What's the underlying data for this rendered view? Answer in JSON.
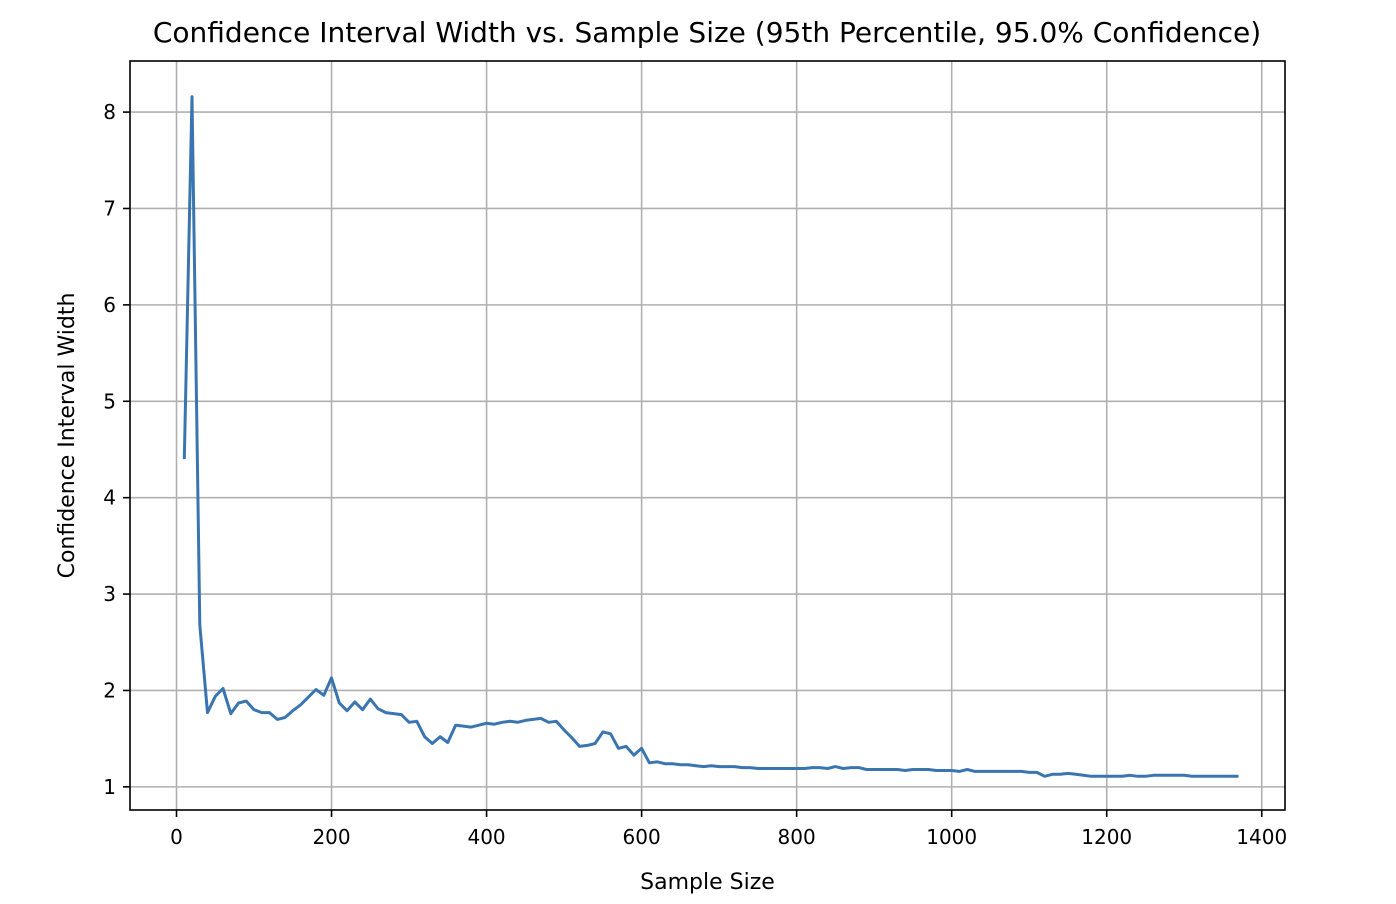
{
  "chart_data": {
    "type": "line",
    "title": "Confidence Interval Width vs. Sample Size (95th Percentile, 95.0% Confidence)",
    "xlabel": "Sample Size",
    "ylabel": "Confidence Interval Width",
    "xlim": [
      -60,
      1430
    ],
    "ylim": [
      0.76,
      8.53
    ],
    "x_ticks": [
      0,
      200,
      400,
      600,
      800,
      1000,
      1200,
      1400
    ],
    "x_tick_labels": [
      "0",
      "200",
      "400",
      "600",
      "800",
      "1000",
      "1200",
      "1400"
    ],
    "y_ticks": [
      1,
      2,
      3,
      4,
      5,
      6,
      7,
      8
    ],
    "y_tick_labels": [
      "1",
      "2",
      "3",
      "4",
      "5",
      "6",
      "7",
      "8"
    ],
    "grid": true,
    "series": [
      {
        "color": "#3a75af",
        "x": [
          10,
          20,
          30,
          40,
          50,
          60,
          70,
          80,
          90,
          100,
          110,
          120,
          130,
          140,
          150,
          160,
          170,
          180,
          190,
          200,
          210,
          220,
          230,
          240,
          250,
          260,
          270,
          280,
          290,
          300,
          310,
          320,
          330,
          340,
          350,
          360,
          370,
          380,
          390,
          400,
          410,
          420,
          430,
          440,
          450,
          460,
          470,
          480,
          490,
          500,
          510,
          520,
          530,
          540,
          550,
          560,
          570,
          580,
          590,
          600,
          610,
          620,
          630,
          640,
          650,
          660,
          670,
          680,
          690,
          700,
          710,
          720,
          730,
          740,
          750,
          760,
          770,
          780,
          790,
          800,
          810,
          820,
          830,
          840,
          850,
          860,
          870,
          880,
          890,
          900,
          910,
          920,
          930,
          940,
          950,
          960,
          970,
          980,
          990,
          1000,
          1010,
          1020,
          1030,
          1040,
          1050,
          1060,
          1070,
          1080,
          1090,
          1100,
          1110,
          1120,
          1130,
          1140,
          1150,
          1160,
          1170,
          1180,
          1190,
          1200,
          1210,
          1220,
          1230,
          1240,
          1250,
          1260,
          1270,
          1280,
          1290,
          1300,
          1310,
          1320,
          1330,
          1340,
          1350,
          1360,
          1370
        ],
        "y": [
          4.4,
          8.16,
          2.68,
          1.77,
          1.94,
          2.02,
          1.76,
          1.87,
          1.89,
          1.8,
          1.77,
          1.77,
          1.7,
          1.72,
          1.79,
          1.85,
          1.93,
          2.01,
          1.95,
          2.13,
          1.87,
          1.79,
          1.88,
          1.8,
          1.91,
          1.81,
          1.77,
          1.76,
          1.75,
          1.67,
          1.68,
          1.52,
          1.45,
          1.52,
          1.46,
          1.64,
          1.63,
          1.62,
          1.64,
          1.66,
          1.65,
          1.67,
          1.68,
          1.67,
          1.69,
          1.7,
          1.71,
          1.67,
          1.68,
          1.59,
          1.51,
          1.42,
          1.43,
          1.45,
          1.57,
          1.55,
          1.4,
          1.42,
          1.33,
          1.4,
          1.25,
          1.26,
          1.24,
          1.24,
          1.23,
          1.23,
          1.22,
          1.21,
          1.22,
          1.21,
          1.21,
          1.21,
          1.2,
          1.2,
          1.19,
          1.19,
          1.19,
          1.19,
          1.19,
          1.19,
          1.19,
          1.2,
          1.2,
          1.19,
          1.21,
          1.19,
          1.2,
          1.2,
          1.18,
          1.18,
          1.18,
          1.18,
          1.18,
          1.17,
          1.18,
          1.18,
          1.18,
          1.17,
          1.17,
          1.17,
          1.16,
          1.18,
          1.16,
          1.16,
          1.16,
          1.16,
          1.16,
          1.16,
          1.16,
          1.15,
          1.15,
          1.11,
          1.13,
          1.13,
          1.14,
          1.13,
          1.12,
          1.11,
          1.11,
          1.11,
          1.11,
          1.11,
          1.12,
          1.11,
          1.11,
          1.12,
          1.12,
          1.12,
          1.12,
          1.12,
          1.11,
          1.11,
          1.11,
          1.11,
          1.11,
          1.11,
          1.11
        ]
      }
    ]
  }
}
